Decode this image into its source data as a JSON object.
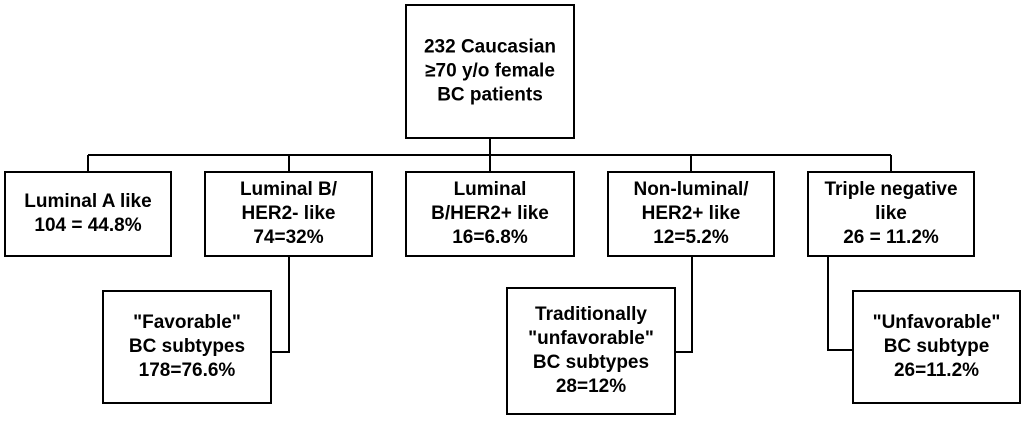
{
  "nodes": [
    {
      "lines": [
        "232 Caucasian",
        "≥70 y/o female",
        "BC patients"
      ]
    },
    {
      "lines": [
        "Luminal A like",
        "104 = 44.8%"
      ]
    },
    {
      "lines": [
        "Luminal B/",
        "HER2- like",
        "74=32%"
      ]
    },
    {
      "lines": [
        "Luminal",
        "B/HER2+ like",
        "16=6.8%"
      ]
    },
    {
      "lines": [
        "Non-luminal/",
        "HER2+ like",
        "12=5.2%"
      ]
    },
    {
      "lines": [
        "Triple negative",
        "like",
        "26 = 11.2%"
      ]
    },
    {
      "lines": [
        "\"Favorable\"",
        "BC subtypes",
        "178=76.6%"
      ]
    },
    {
      "lines": [
        "Traditionally",
        "\"unfavorable\"",
        "BC subtypes",
        "28=12%"
      ]
    },
    {
      "lines": [
        "\"Unfavorable\"",
        "BC subtype",
        "26=11.2%"
      ]
    }
  ]
}
